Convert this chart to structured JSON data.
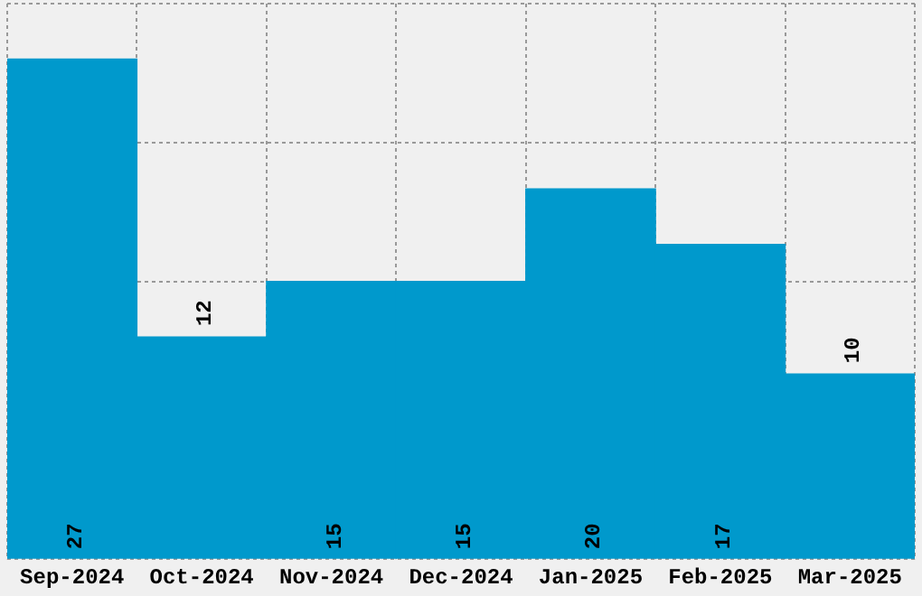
{
  "chart_data": {
    "type": "bar",
    "categories": [
      "Sep-2024",
      "Oct-2024",
      "Nov-2024",
      "Dec-2024",
      "Jan-2025",
      "Feb-2025",
      "Mar-2025"
    ],
    "values": [
      27,
      12,
      15,
      15,
      20,
      17,
      10
    ],
    "color": "#0099cc",
    "ylim": [
      0,
      30
    ],
    "yticks": [
      {
        "value": 0,
        "label": null
      },
      {
        "value": 15,
        "label": null
      },
      {
        "value": 22.5,
        "label": null
      },
      {
        "value": 30,
        "label": null
      }
    ],
    "tick_labels": "x",
    "grid": true,
    "line_style": "dotted",
    "data_labels": true
  }
}
